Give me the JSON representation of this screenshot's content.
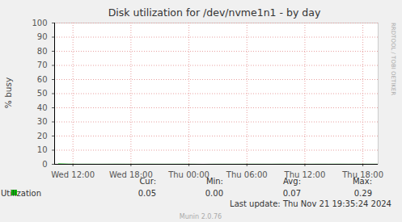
{
  "chart_data": {
    "type": "line",
    "title": "Disk utilization for /dev/nvme1n1 - by day",
    "y_label": "% busy",
    "x": [
      10.5,
      11.5,
      12.5,
      13.5,
      14.5,
      15.5,
      16.5,
      17.5,
      18.5,
      19.5,
      20.5,
      21.5,
      22.5,
      23.5,
      24.5,
      25.5,
      26.5,
      27.5,
      28.5,
      29.5,
      30.5,
      31.5,
      32.5,
      33.5,
      34.5,
      35.5,
      36.5,
      37.5,
      38.5,
      39.5,
      40.5,
      41.5,
      42.5,
      43.5
    ],
    "series": [
      {
        "name": "Utilization",
        "color": "#00cc00",
        "values": [
          0.29,
          0.12,
          0.06,
          0.07,
          0.05,
          0.06,
          0.08,
          0.06,
          0.05,
          0.07,
          0.06,
          0.05,
          0.06,
          0.07,
          0.05,
          0.0,
          0.05,
          0.06,
          0.05,
          0.06,
          0.07,
          0.06,
          0.05,
          0.08,
          0.07,
          0.06,
          0.05,
          0.07,
          0.06,
          0.08,
          0.06,
          0.07,
          0.06,
          0.05
        ],
        "stats": {
          "labels": [
            "Cur:",
            "Min:",
            "Avg:",
            "Max:"
          ],
          "values": [
            0.05,
            0,
            0.07,
            0.29
          ],
          "value_labels": [
            "0.05",
            "0.00",
            "0.07",
            "0.29"
          ]
        }
      }
    ],
    "xlim": [
      10.1,
      43.58
    ],
    "xticks": [
      {
        "value": 12,
        "label": "Wed 12:00"
      },
      {
        "value": 18,
        "label": "Wed 18:00"
      },
      {
        "value": 24,
        "label": "Thu 00:00"
      },
      {
        "value": 30,
        "label": "Thu 06:00"
      },
      {
        "value": 36,
        "label": "Thu 12:00"
      },
      {
        "value": 42,
        "label": "Thu 18:00"
      }
    ],
    "ylim": [
      0,
      100
    ],
    "yticks": [
      0,
      10,
      20,
      30,
      40,
      50,
      60,
      70,
      80,
      90,
      100
    ],
    "grid": true,
    "last_update": "Last update: Thu Nov 21 19:35:24 2024",
    "footer": "Munin 2.0.76",
    "watermark": "RRDTOOL / TOBI OETIKER"
  }
}
